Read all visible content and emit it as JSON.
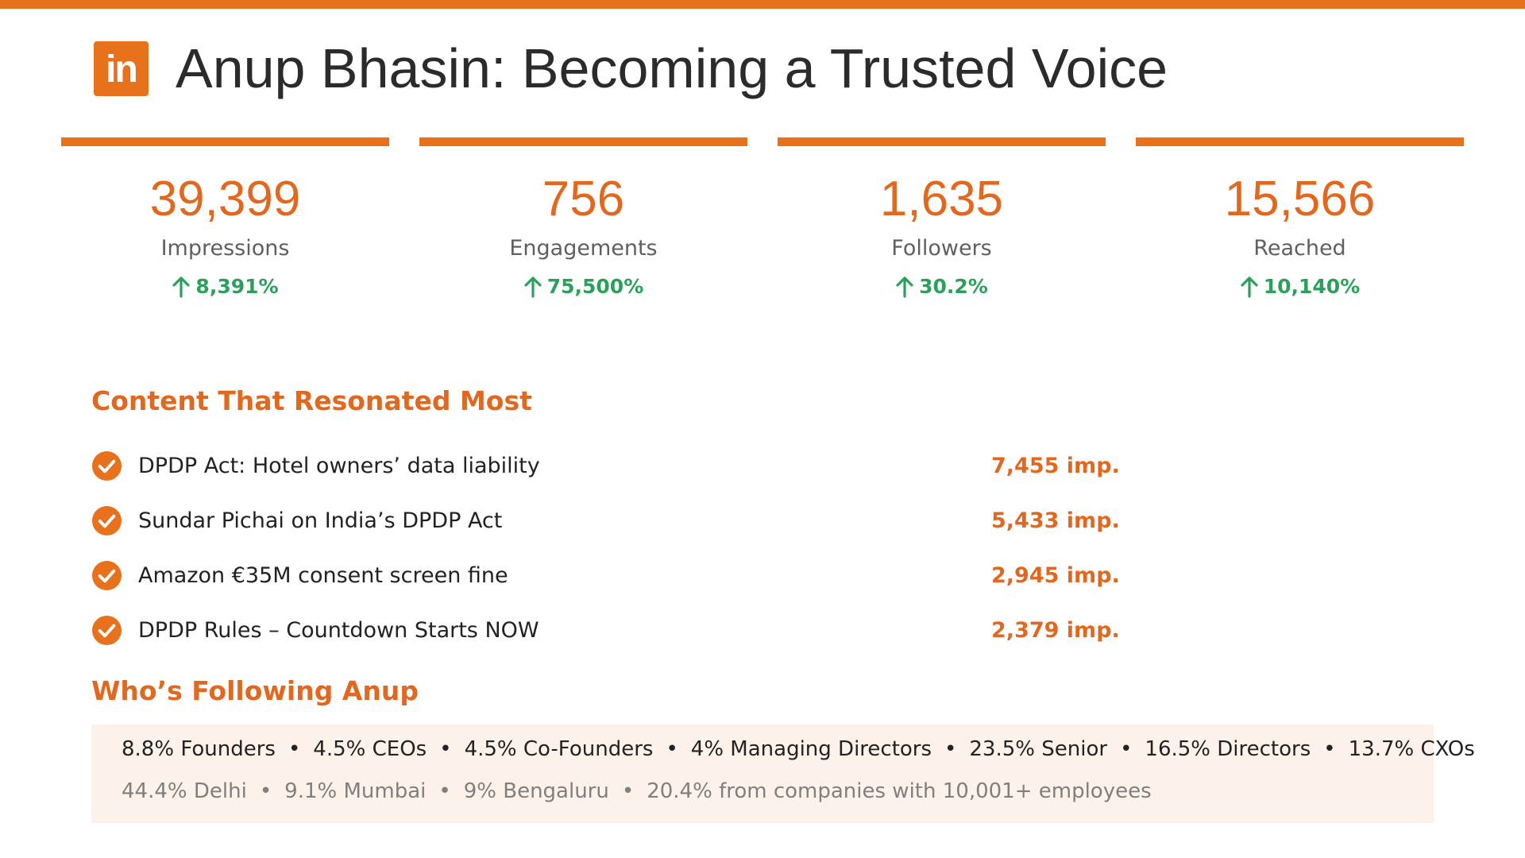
{
  "header": {
    "logo_text": "in",
    "title": "Anup Bhasin: Becoming a Trusted Voice"
  },
  "stats": [
    {
      "value": "39,399",
      "label": "Impressions",
      "change": "8,391%"
    },
    {
      "value": "756",
      "label": "Engagements",
      "change": "75,500%"
    },
    {
      "value": "1,635",
      "label": "Followers",
      "change": "30.2%"
    },
    {
      "value": "15,566",
      "label": "Reached",
      "change": "10,140%"
    }
  ],
  "content": {
    "title": "Content That Resonated Most",
    "items": [
      {
        "text": "DPDP Act: Hotel owners’ data liability",
        "imp": "7,455 imp."
      },
      {
        "text": "Sundar Pichai on India’s DPDP Act",
        "imp": "5,433 imp."
      },
      {
        "text": "Amazon €35M consent screen fine",
        "imp": "2,945 imp."
      },
      {
        "text": "DPDP Rules – Countdown Starts NOW",
        "imp": "2,379 imp."
      }
    ]
  },
  "followers": {
    "title": "Who’s Following Anup",
    "separator": "•",
    "roles": [
      "8.8% Founders",
      "4.5% CEOs",
      "4.5% Co-Founders",
      "4% Managing Directors",
      "23.5% Senior",
      "16.5% Directors",
      "13.7% CXOs"
    ],
    "locations": [
      "44.4% Delhi",
      "9.1% Mumbai",
      "9% Bengaluru",
      "20.4% from companies with 10,001+ employees"
    ]
  },
  "colors": {
    "accent": "#E8711C",
    "positive": "#2BA05A",
    "panel_bg": "#FDF2EA"
  },
  "icons": {
    "logo": "linkedin-icon",
    "change": "arrow-up-icon",
    "content_item": "check-circle-icon"
  }
}
